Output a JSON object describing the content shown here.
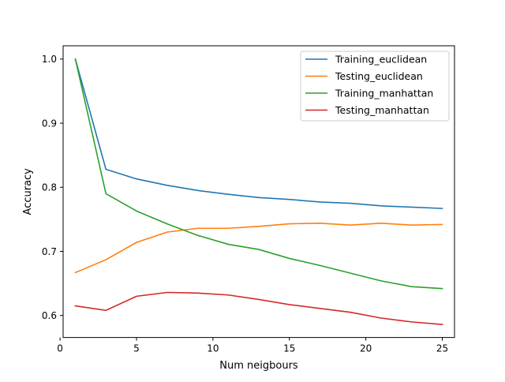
{
  "chart_data": {
    "type": "line",
    "title": "",
    "xlabel": "Num neigbours",
    "ylabel": "Accuracy",
    "xlim": [
      0.2,
      25.8
    ],
    "ylim": [
      0.5657,
      1.0207
    ],
    "x": [
      1,
      3,
      5,
      7,
      9,
      11,
      13,
      15,
      17,
      19,
      21,
      23,
      25
    ],
    "xticks": [
      0,
      5,
      10,
      15,
      20,
      25
    ],
    "yticks": [
      0.6,
      0.7,
      0.8,
      0.9,
      1.0
    ],
    "xtick_labels": [
      "0",
      "5",
      "10",
      "15",
      "20",
      "25"
    ],
    "ytick_labels": [
      "0.6",
      "0.7",
      "0.8",
      "0.9",
      "1.0"
    ],
    "grid": false,
    "legend_position": "top-right",
    "series": [
      {
        "name": "Training_euclidean",
        "color": "#1f77b4",
        "values": [
          1.0,
          0.828,
          0.813,
          0.803,
          0.795,
          0.789,
          0.784,
          0.781,
          0.777,
          0.775,
          0.771,
          0.769,
          0.767
        ]
      },
      {
        "name": "Testing_euclidean",
        "color": "#ff7f0e",
        "values": [
          0.667,
          0.687,
          0.714,
          0.73,
          0.736,
          0.736,
          0.739,
          0.743,
          0.744,
          0.741,
          0.744,
          0.741,
          0.742
        ]
      },
      {
        "name": "Training_manhattan",
        "color": "#2ca02c",
        "values": [
          1.0,
          0.79,
          0.763,
          0.743,
          0.725,
          0.711,
          0.703,
          0.689,
          0.678,
          0.666,
          0.654,
          0.645,
          0.642
        ]
      },
      {
        "name": "Testing_manhattan",
        "color": "#d62728",
        "values": [
          0.615,
          0.608,
          0.63,
          0.636,
          0.635,
          0.632,
          0.625,
          0.617,
          0.611,
          0.605,
          0.596,
          0.59,
          0.586
        ]
      }
    ]
  }
}
